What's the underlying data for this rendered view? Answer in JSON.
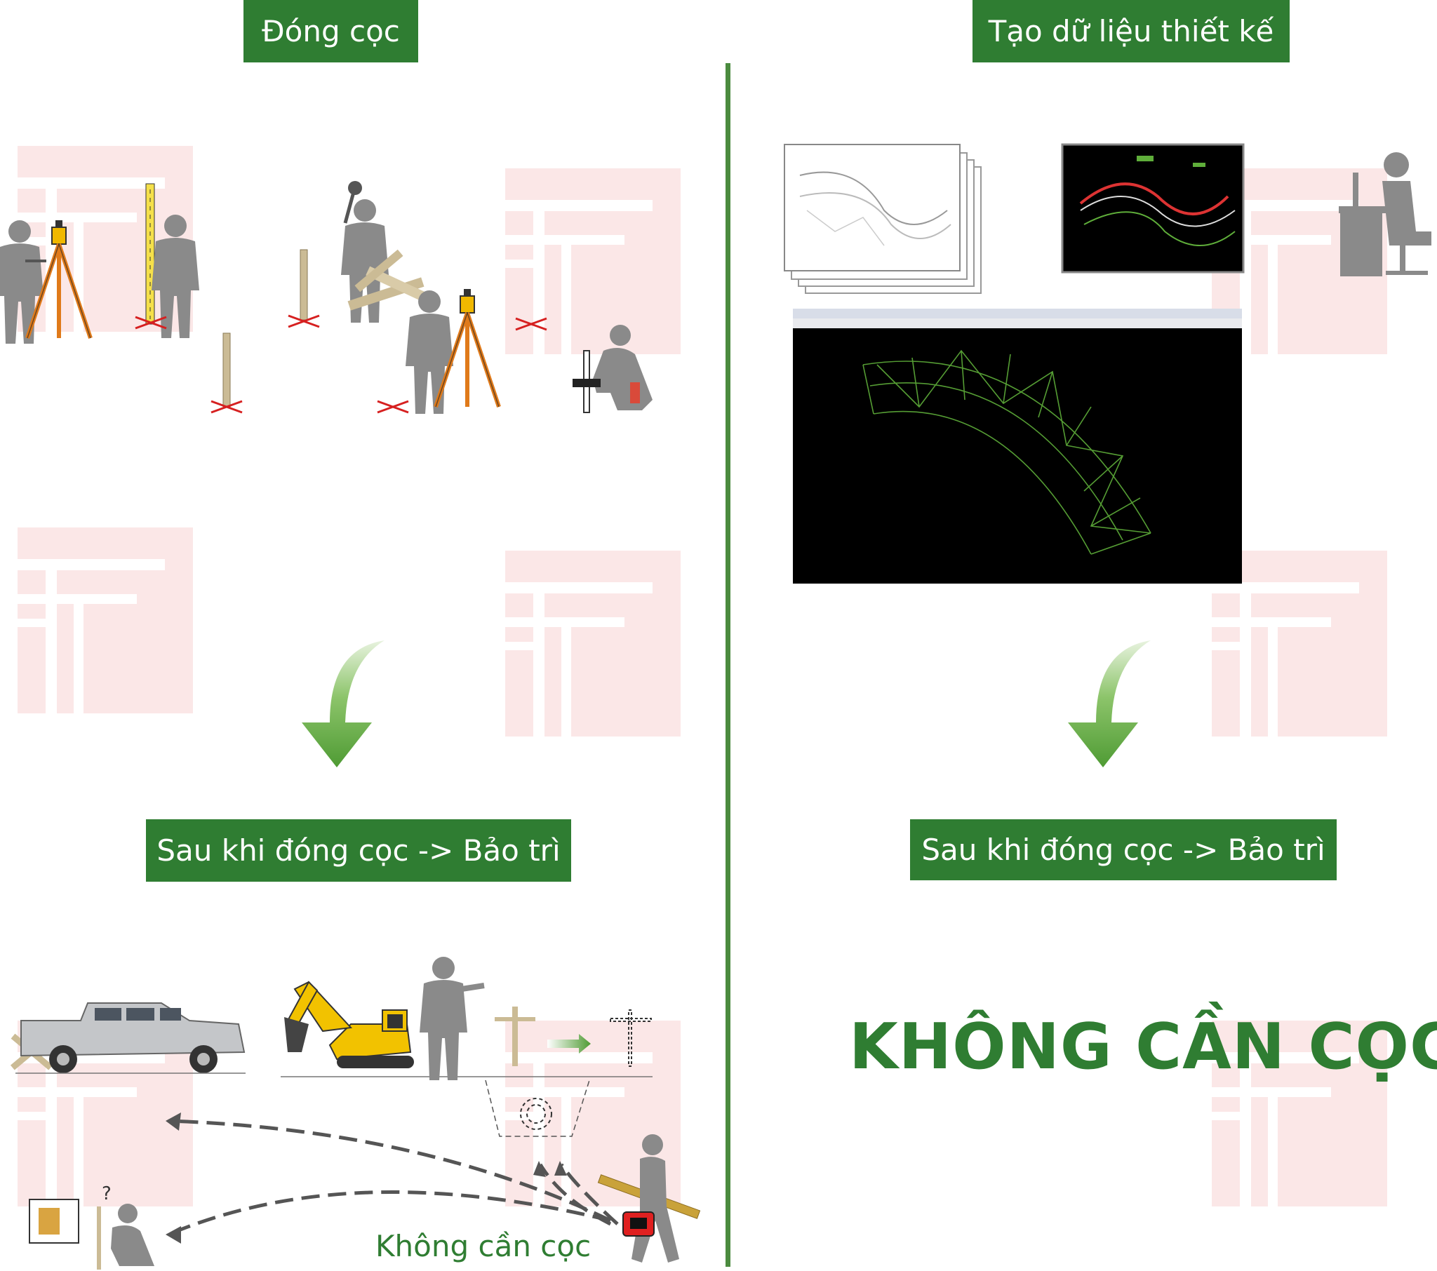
{
  "left": {
    "title": "Đóng cọc",
    "maintenance_label": "Sau khi đóng cọc -> Bảo trì",
    "footer_note": "Không cần cọc"
  },
  "right": {
    "title": "Tạo dữ liệu thiết kế",
    "maintenance_label": "Sau khi đóng cọc -> Bảo trì",
    "result": "KHÔNG CẦN CỌC"
  },
  "colors": {
    "brand_green": "#2f7d32",
    "divider_green": "#4b8b3f",
    "stake_mark_red": "#d62020",
    "watermark_pink": "#fbe3e3",
    "silhouette_gray": "#8a8a8a",
    "excavator_yellow": "#f2c200",
    "cad_screen_black": "#000000",
    "cad_mesh_green": "#5fae3a"
  }
}
